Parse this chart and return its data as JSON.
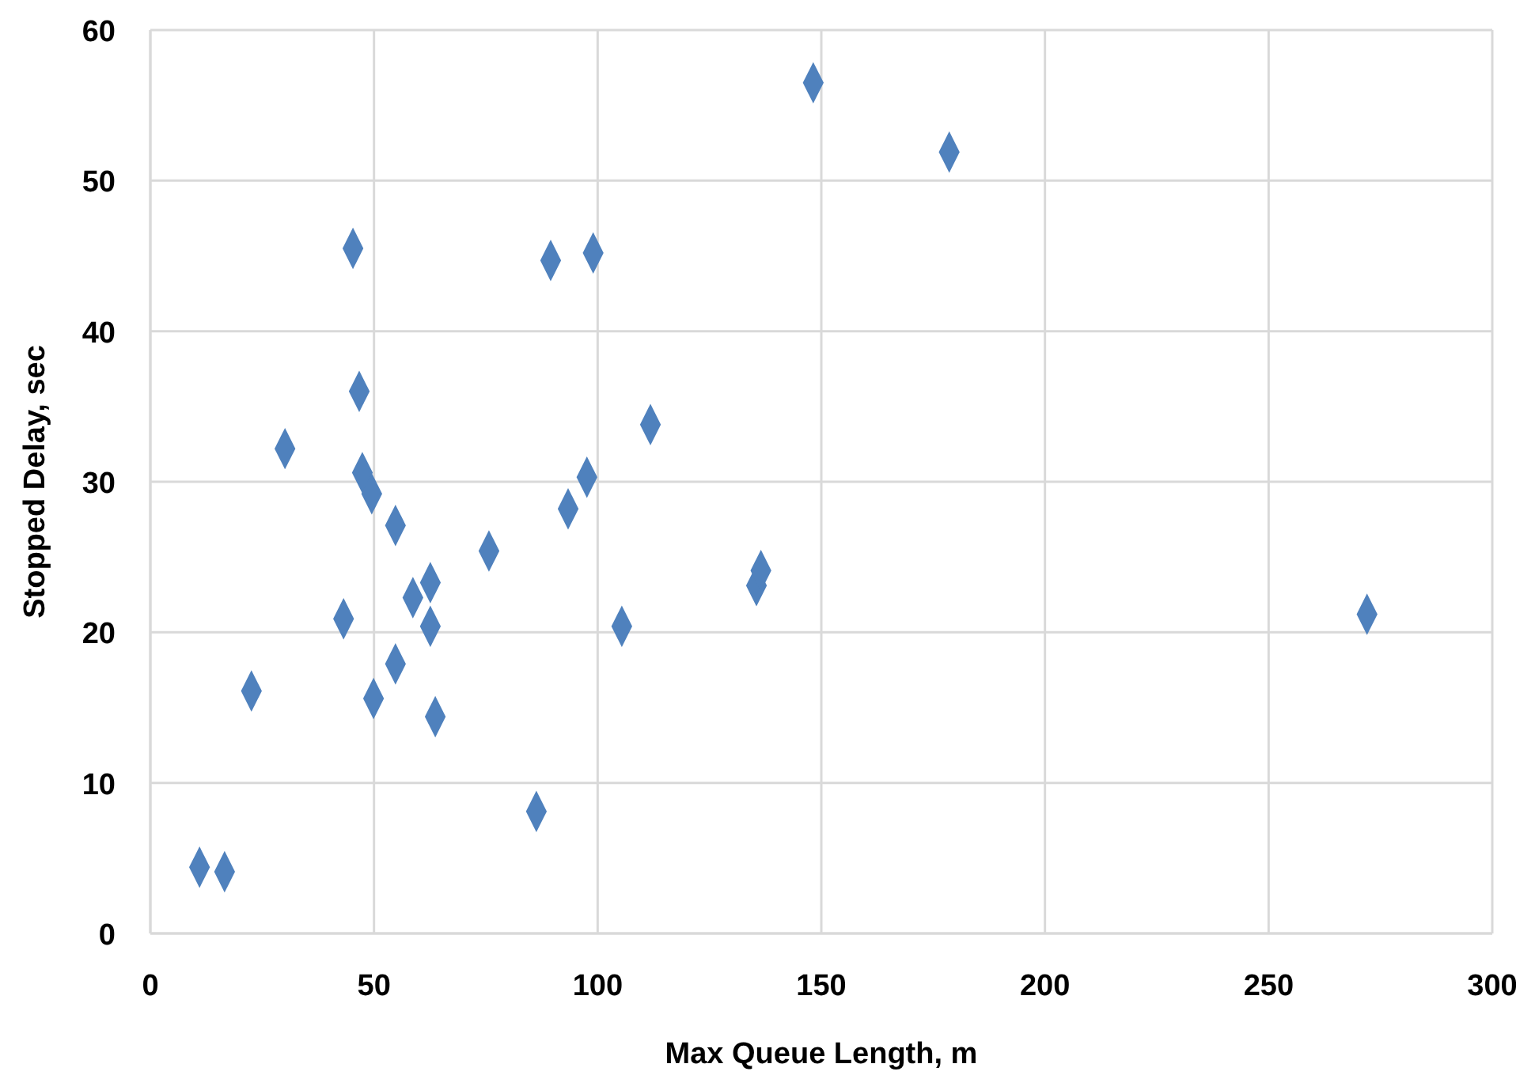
{
  "chart_data": {
    "type": "scatter",
    "xlabel": "Max Queue Length, m",
    "ylabel": "Stopped Delay, sec",
    "xlim": [
      0,
      300
    ],
    "ylim": [
      0,
      60
    ],
    "xticks": [
      0,
      50,
      100,
      150,
      200,
      250,
      300
    ],
    "yticks": [
      0,
      10,
      20,
      30,
      40,
      50,
      60
    ],
    "grid": true,
    "marker": "diamond",
    "series": [
      {
        "color": "#4f81bd",
        "x": [
          11,
          16.6,
          22.6,
          30.1,
          43.2,
          45.3,
          46.7,
          47.4,
          49.5,
          49.9,
          54.8,
          54.8,
          58.7,
          62.6,
          62.6,
          63.7,
          75.7,
          86.3,
          89.5,
          93.4,
          97.6,
          99,
          105.4,
          111.8,
          135.5,
          136.5,
          148.2,
          178.6,
          272
        ],
        "values": [
          4.4,
          4.1,
          16.1,
          32.2,
          20.9,
          45.5,
          36,
          30.6,
          29.2,
          15.6,
          27.1,
          17.9,
          22.3,
          23.3,
          20.4,
          14.4,
          25.4,
          8.1,
          44.7,
          28.2,
          30.3,
          45.2,
          20.4,
          33.8,
          23.1,
          24.1,
          56.5,
          51.9,
          21.2
        ]
      }
    ]
  }
}
